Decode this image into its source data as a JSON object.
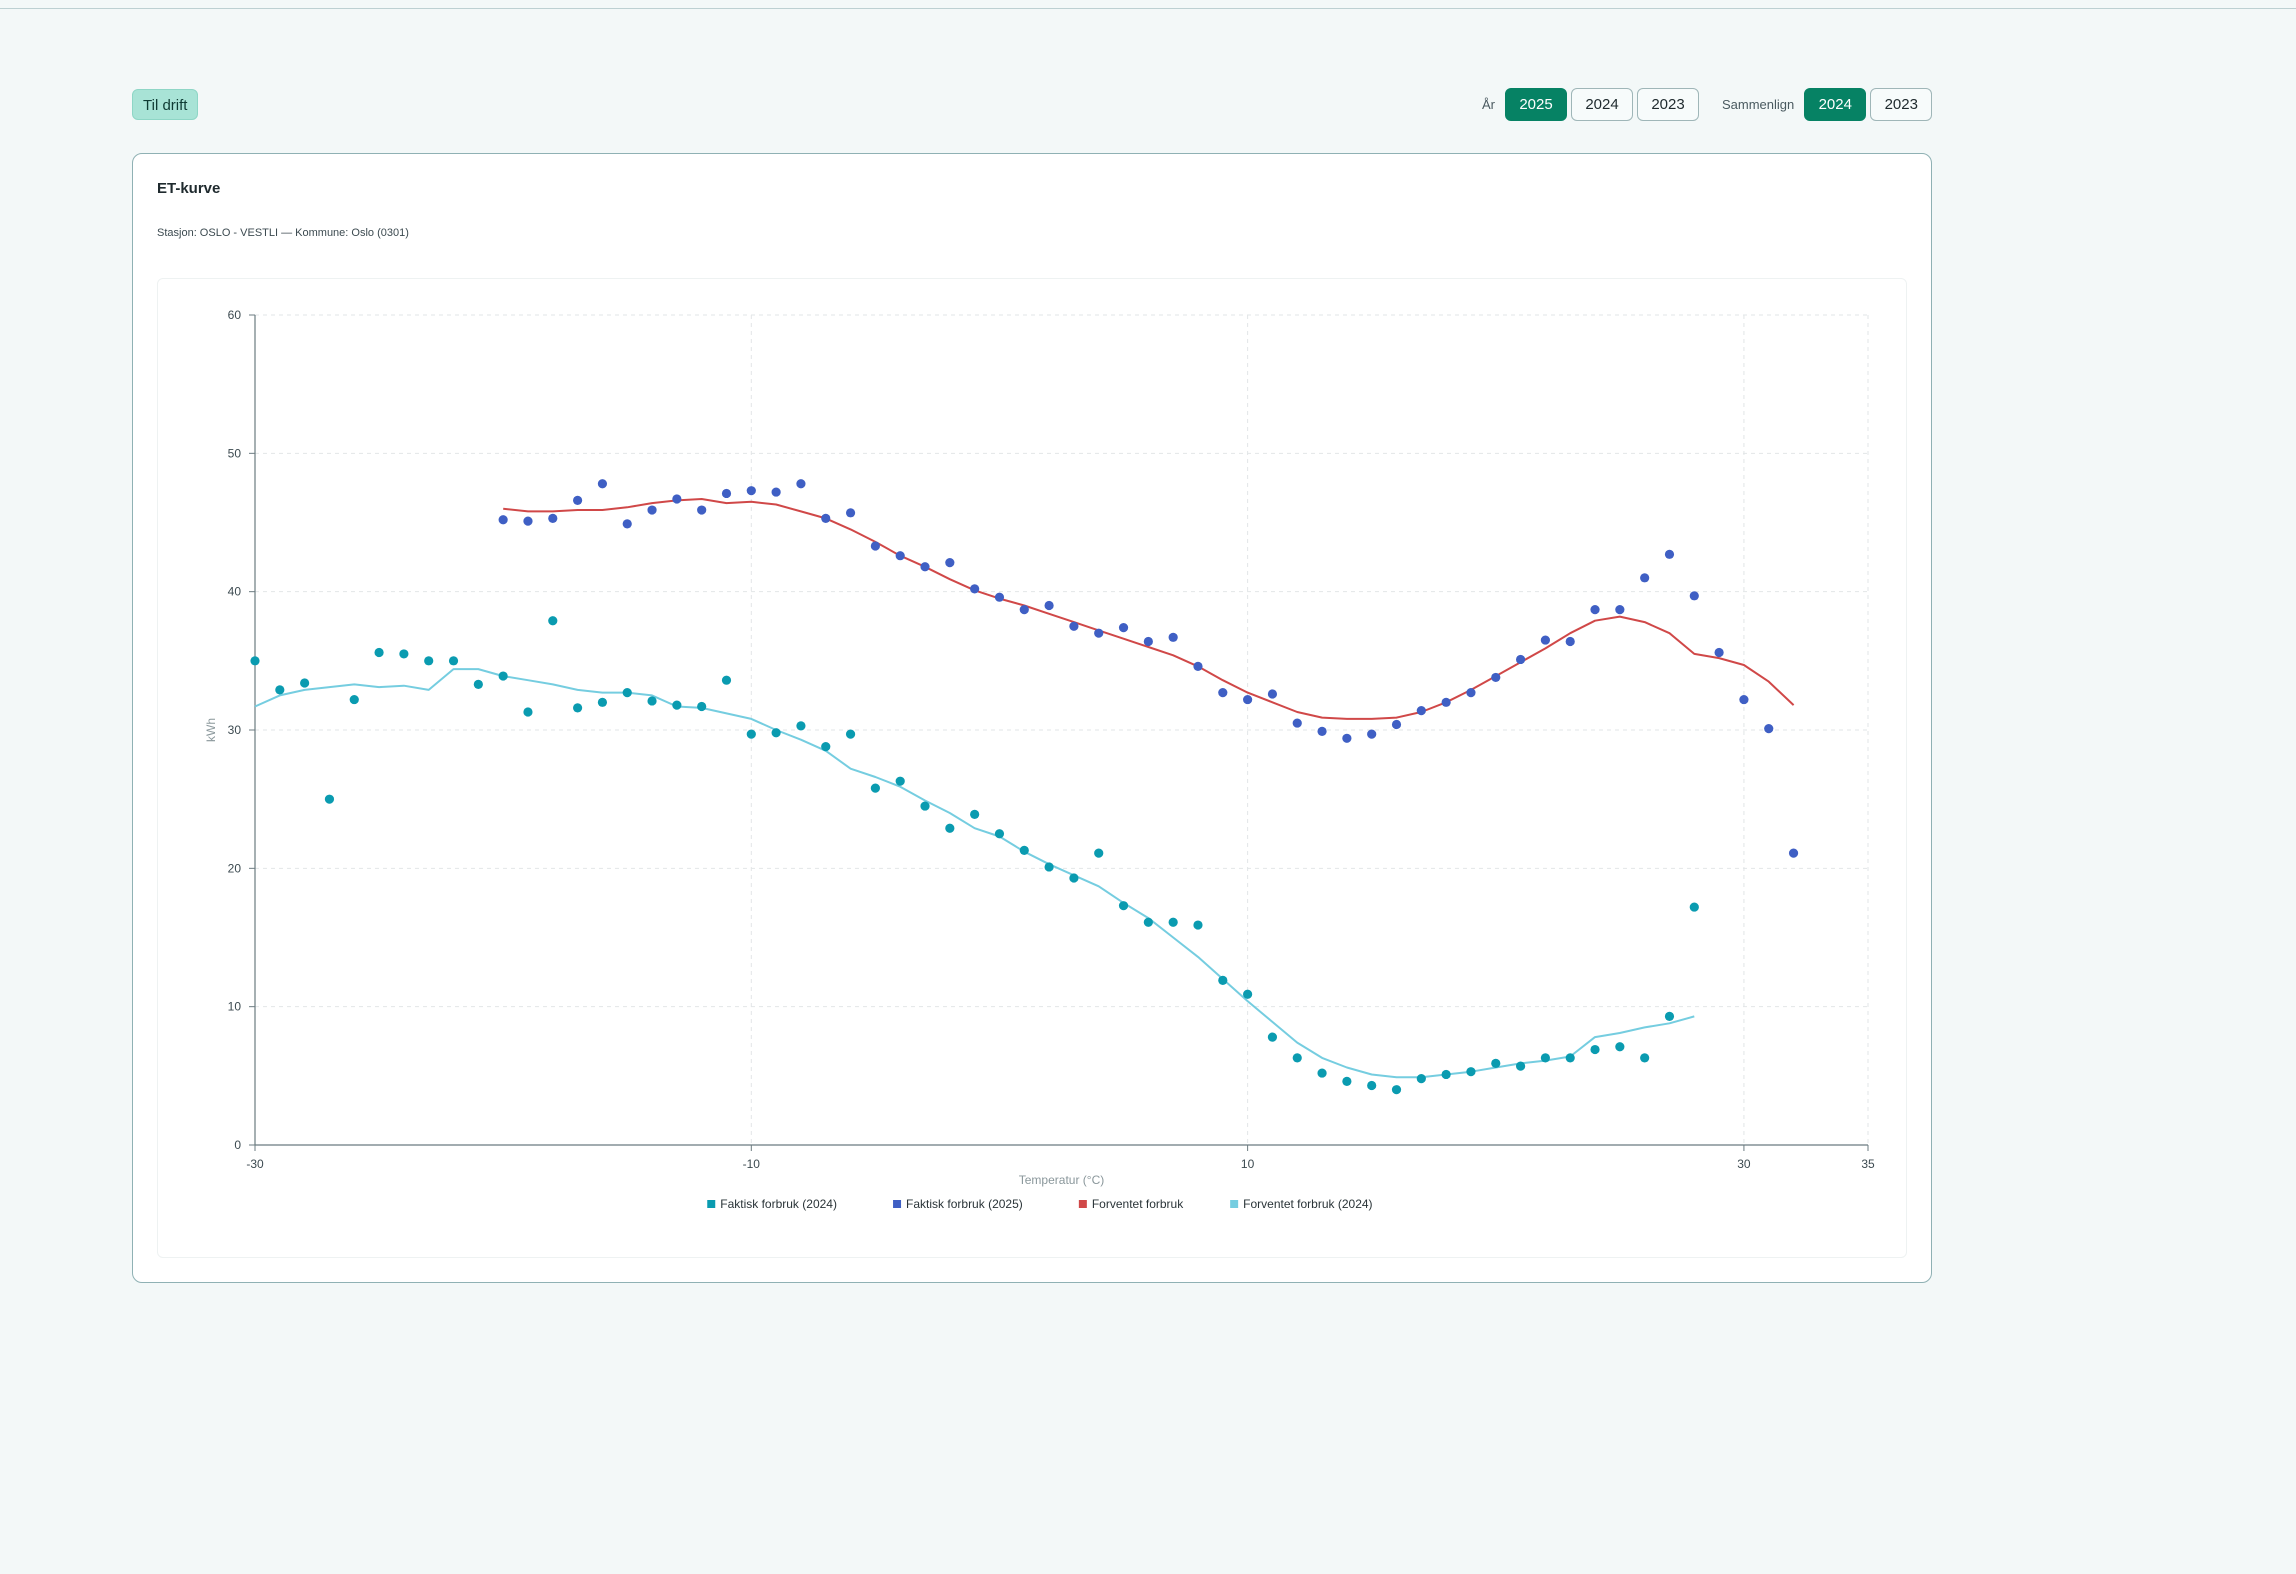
{
  "toolbar": {
    "back_label": "Til drift",
    "year_label": "År",
    "years": [
      "2025",
      "2024",
      "2023"
    ],
    "year_selected": "2025",
    "compare_label": "Sammenlign",
    "compare_years": [
      "2024",
      "2023"
    ],
    "compare_selected": "2024"
  },
  "card": {
    "title": "ET-kurve",
    "subtitle": "Stasjon: OSLO - VESTLI — Kommune: Oslo (0301)"
  },
  "colors": {
    "accent": "#068264",
    "series_2024": "#0a9bb0",
    "series_2025": "#3f5fc4",
    "expected": "#d04848",
    "expected_2024": "#75cde0"
  },
  "chart_data": {
    "type": "scatter",
    "title": "",
    "xlabel": "Temperatur (°C)",
    "ylabel": "kWh",
    "xlim": [
      -30,
      35
    ],
    "ylim": [
      0,
      60
    ],
    "x_ticks": [
      -30,
      -10,
      10,
      30,
      35
    ],
    "y_ticks": [
      0,
      10,
      20,
      30,
      40,
      50,
      60
    ],
    "grid": true,
    "legend_position": "bottom",
    "series": [
      {
        "name": "Faktisk forbruk (2024)",
        "type": "scatter",
        "color": "#0a9bb0",
        "points": [
          [
            -30,
            35
          ],
          [
            -29,
            32.9
          ],
          [
            -28,
            33.4
          ],
          [
            -27,
            25
          ],
          [
            -26,
            32.2
          ],
          [
            -25,
            35.6
          ],
          [
            -24,
            35.5
          ],
          [
            -23,
            35
          ],
          [
            -22,
            35
          ],
          [
            -21,
            33.3
          ],
          [
            -20,
            33.9
          ],
          [
            -19,
            31.3
          ],
          [
            -18,
            37.9
          ],
          [
            -17,
            31.6
          ],
          [
            -16,
            32
          ],
          [
            -15,
            32.7
          ],
          [
            -14,
            32.1
          ],
          [
            -13,
            31.8
          ],
          [
            -12,
            31.7
          ],
          [
            -11,
            33.6
          ],
          [
            -10,
            29.7
          ],
          [
            -9,
            29.8
          ],
          [
            -8,
            30.3
          ],
          [
            -7,
            28.8
          ],
          [
            -6,
            29.7
          ],
          [
            -5,
            25.8
          ],
          [
            -4,
            26.3
          ],
          [
            -3,
            24.5
          ],
          [
            -2,
            22.9
          ],
          [
            -1,
            23.9
          ],
          [
            0,
            22.5
          ],
          [
            1,
            21.3
          ],
          [
            2,
            20.1
          ],
          [
            3,
            19.3
          ],
          [
            4,
            21.1
          ],
          [
            5,
            17.3
          ],
          [
            6,
            16.1
          ],
          [
            7,
            16.1
          ],
          [
            8,
            15.9
          ],
          [
            9,
            11.9
          ],
          [
            10,
            10.9
          ],
          [
            11,
            7.8
          ],
          [
            12,
            6.3
          ],
          [
            13,
            5.2
          ],
          [
            14,
            4.6
          ],
          [
            15,
            4.3
          ],
          [
            16,
            4
          ],
          [
            17,
            4.8
          ],
          [
            18,
            5.1
          ],
          [
            19,
            5.3
          ],
          [
            20,
            5.9
          ],
          [
            21,
            5.7
          ],
          [
            22,
            6.3
          ],
          [
            23,
            6.3
          ],
          [
            24,
            6.9
          ],
          [
            25,
            7.1
          ],
          [
            26,
            6.3
          ],
          [
            27,
            9.3
          ],
          [
            28,
            17.2
          ]
        ]
      },
      {
        "name": "Faktisk forbruk (2025)",
        "type": "scatter",
        "color": "#3f5fc4",
        "points": [
          [
            -20,
            45.2
          ],
          [
            -19,
            45.1
          ],
          [
            -18,
            45.3
          ],
          [
            -17,
            46.6
          ],
          [
            -16,
            47.8
          ],
          [
            -15,
            44.9
          ],
          [
            -14,
            45.9
          ],
          [
            -13,
            46.7
          ],
          [
            -12,
            45.9
          ],
          [
            -11,
            47.1
          ],
          [
            -10,
            47.3
          ],
          [
            -9,
            47.2
          ],
          [
            -8,
            47.8
          ],
          [
            -7,
            45.3
          ],
          [
            -6,
            45.7
          ],
          [
            -5,
            43.3
          ],
          [
            -4,
            42.6
          ],
          [
            -3,
            41.8
          ],
          [
            -2,
            42.1
          ],
          [
            -1,
            40.2
          ],
          [
            0,
            39.6
          ],
          [
            1,
            38.7
          ],
          [
            2,
            39
          ],
          [
            3,
            37.5
          ],
          [
            4,
            37
          ],
          [
            5,
            37.4
          ],
          [
            6,
            36.4
          ],
          [
            7,
            36.7
          ],
          [
            8,
            34.6
          ],
          [
            9,
            32.7
          ],
          [
            10,
            32.2
          ],
          [
            11,
            32.6
          ],
          [
            12,
            30.5
          ],
          [
            13,
            29.9
          ],
          [
            14,
            29.4
          ],
          [
            15,
            29.7
          ],
          [
            16,
            30.4
          ],
          [
            17,
            31.4
          ],
          [
            18,
            32
          ],
          [
            19,
            32.7
          ],
          [
            20,
            33.8
          ],
          [
            21,
            35.1
          ],
          [
            22,
            36.5
          ],
          [
            23,
            36.4
          ],
          [
            24,
            38.7
          ],
          [
            25,
            38.7
          ],
          [
            26,
            41
          ],
          [
            27,
            42.7
          ],
          [
            28,
            39.7
          ],
          [
            29,
            35.6
          ],
          [
            30,
            32.2
          ],
          [
            31,
            30.1
          ],
          [
            32,
            21.1
          ]
        ]
      },
      {
        "name": "Forventet forbruk",
        "type": "line",
        "color": "#d04848",
        "points": [
          [
            -20,
            46
          ],
          [
            -19,
            45.8
          ],
          [
            -18,
            45.8
          ],
          [
            -17,
            45.9
          ],
          [
            -16,
            45.9
          ],
          [
            -15,
            46.1
          ],
          [
            -14,
            46.4
          ],
          [
            -13,
            46.6
          ],
          [
            -12,
            46.7
          ],
          [
            -11,
            46.4
          ],
          [
            -10,
            46.5
          ],
          [
            -9,
            46.3
          ],
          [
            -8,
            45.8
          ],
          [
            -7,
            45.3
          ],
          [
            -6,
            44.5
          ],
          [
            -5,
            43.6
          ],
          [
            -4,
            42.6
          ],
          [
            -3,
            41.8
          ],
          [
            -2,
            40.9
          ],
          [
            -1,
            40.1
          ],
          [
            0,
            39.5
          ],
          [
            1,
            39
          ],
          [
            2,
            38.4
          ],
          [
            3,
            37.8
          ],
          [
            4,
            37.2
          ],
          [
            5,
            36.6
          ],
          [
            6,
            36
          ],
          [
            7,
            35.4
          ],
          [
            8,
            34.6
          ],
          [
            9,
            33.6
          ],
          [
            10,
            32.7
          ],
          [
            11,
            32
          ],
          [
            12,
            31.3
          ],
          [
            13,
            30.9
          ],
          [
            14,
            30.8
          ],
          [
            15,
            30.8
          ],
          [
            16,
            30.9
          ],
          [
            17,
            31.3
          ],
          [
            18,
            32
          ],
          [
            19,
            32.9
          ],
          [
            20,
            33.9
          ],
          [
            21,
            34.9
          ],
          [
            22,
            35.9
          ],
          [
            23,
            37
          ],
          [
            24,
            37.9
          ],
          [
            25,
            38.2
          ],
          [
            26,
            37.8
          ],
          [
            27,
            37
          ],
          [
            28,
            35.5
          ],
          [
            29,
            35.2
          ],
          [
            30,
            34.7
          ],
          [
            31,
            33.5
          ],
          [
            32,
            31.8
          ]
        ]
      },
      {
        "name": "Forventet forbruk (2024)",
        "type": "line",
        "color": "#75cde0",
        "points": [
          [
            -30,
            31.7
          ],
          [
            -29,
            32.5
          ],
          [
            -28,
            32.9
          ],
          [
            -27,
            33.1
          ],
          [
            -26,
            33.3
          ],
          [
            -25,
            33.1
          ],
          [
            -24,
            33.2
          ],
          [
            -23,
            32.9
          ],
          [
            -22,
            34.4
          ],
          [
            -21,
            34.4
          ],
          [
            -20,
            33.9
          ],
          [
            -19,
            33.6
          ],
          [
            -18,
            33.3
          ],
          [
            -17,
            32.9
          ],
          [
            -16,
            32.7
          ],
          [
            -15,
            32.7
          ],
          [
            -14,
            32.5
          ],
          [
            -13,
            31.7
          ],
          [
            -12,
            31.6
          ],
          [
            -11,
            31.2
          ],
          [
            -10,
            30.8
          ],
          [
            -9,
            30
          ],
          [
            -8,
            29.3
          ],
          [
            -7,
            28.5
          ],
          [
            -6,
            27.2
          ],
          [
            -5,
            26.6
          ],
          [
            -4,
            25.9
          ],
          [
            -3,
            24.9
          ],
          [
            -2,
            24
          ],
          [
            -1,
            22.9
          ],
          [
            0,
            22.3
          ],
          [
            1,
            21.2
          ],
          [
            2,
            20.3
          ],
          [
            3,
            19.5
          ],
          [
            4,
            18.7
          ],
          [
            5,
            17.5
          ],
          [
            6,
            16.4
          ],
          [
            7,
            15
          ],
          [
            8,
            13.6
          ],
          [
            9,
            12
          ],
          [
            10,
            10.4
          ],
          [
            11,
            8.9
          ],
          [
            12,
            7.4
          ],
          [
            13,
            6.3
          ],
          [
            14,
            5.6
          ],
          [
            15,
            5.1
          ],
          [
            16,
            4.9
          ],
          [
            17,
            4.9
          ],
          [
            18,
            5.1
          ],
          [
            19,
            5.3
          ],
          [
            20,
            5.6
          ],
          [
            21,
            5.9
          ],
          [
            22,
            6.1
          ],
          [
            23,
            6.4
          ],
          [
            24,
            7.8
          ],
          [
            25,
            8.1
          ],
          [
            26,
            8.5
          ],
          [
            27,
            8.8
          ],
          [
            28,
            9.3
          ]
        ]
      }
    ]
  }
}
